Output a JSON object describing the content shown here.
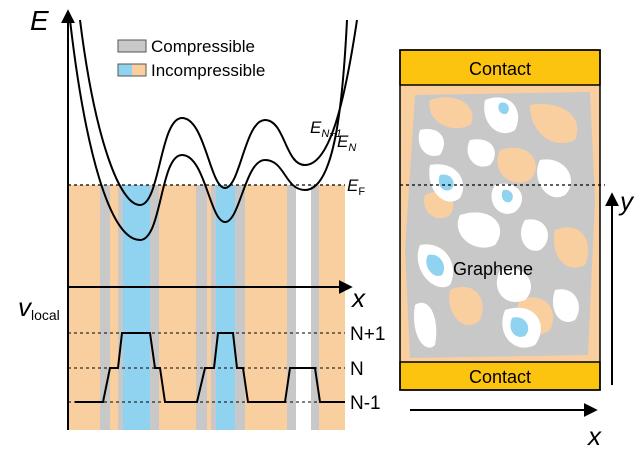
{
  "legend": {
    "compressible": "Compressible",
    "incompressible": "Incompressible"
  },
  "left_panel": {
    "energy_axis": "E",
    "x_axis": "x",
    "velocity_axis": {
      "symbol": "v",
      "subscript": "local"
    },
    "levels": [
      {
        "symbol": "E",
        "subscript": "N+1"
      },
      {
        "symbol": "E",
        "subscript": "N"
      },
      {
        "symbol": "E",
        "subscript": "F"
      }
    ],
    "filling_levels": [
      "N+1",
      "N",
      "N-1"
    ]
  },
  "right_panel": {
    "top_contact": "Contact",
    "bottom_contact": "Contact",
    "sample": "Graphene",
    "y_axis": "y",
    "x_axis": "x"
  }
}
